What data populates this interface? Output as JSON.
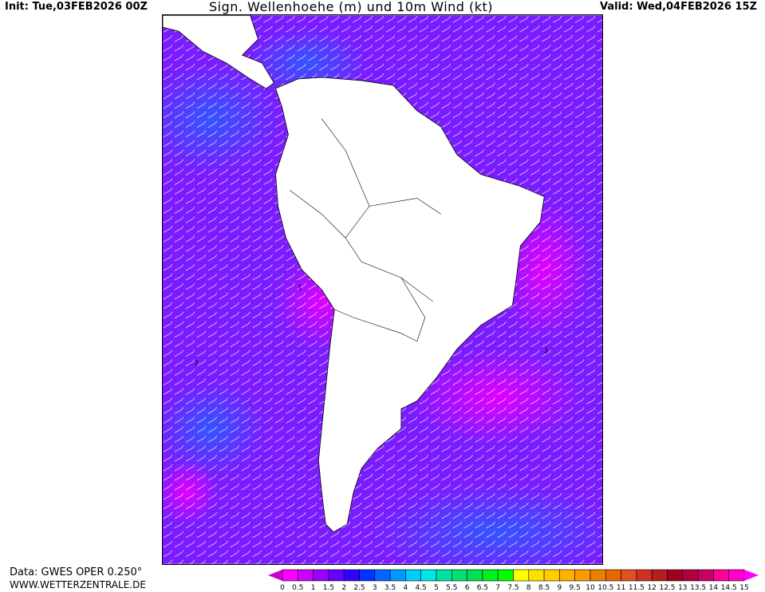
{
  "header": {
    "init": "Init: Tue,03FEB2026 00Z",
    "title": "Sign. Wellenhoehe (m) und 10m Wind (kt)",
    "valid": "Valid: Wed,04FEB2026 15Z"
  },
  "footer": {
    "data_source": "Data: GWES OPER 0.250°",
    "website": "WWW.WETTERZENTRALE.DE"
  },
  "map": {
    "region": "South America",
    "variable": "significant wave height (m) and 10m wind barbs (kt)",
    "contour_labels": [
      "1",
      "2",
      "3"
    ]
  },
  "legend": {
    "unit": "m",
    "labels": [
      "0",
      "0.5",
      "1",
      "1.5",
      "2",
      "2.5",
      "3",
      "3.5",
      "4",
      "4.5",
      "5",
      "5.5",
      "6",
      "6.5",
      "7",
      "7.5",
      "8",
      "8.5",
      "9",
      "9.5",
      "10",
      "10.5",
      "11",
      "11.5",
      "12",
      "12.5",
      "13",
      "13.5",
      "14",
      "14.5",
      "15"
    ],
    "colors": [
      "#ff00ff",
      "#cc00ff",
      "#9900ff",
      "#6600ff",
      "#3300ff",
      "#0033ff",
      "#0066ff",
      "#0099ff",
      "#00ccff",
      "#00e5e5",
      "#00e0a0",
      "#00e070",
      "#00e050",
      "#00f020",
      "#00ff00",
      "#ffff00",
      "#ffe000",
      "#ffcc00",
      "#ffb000",
      "#ff9900",
      "#e88000",
      "#e86600",
      "#e05020",
      "#d03020",
      "#b81c1c",
      "#a00020",
      "#b00040",
      "#c80060",
      "#ff0099",
      "#ff00cc"
    ],
    "under_color": "#cc00cc",
    "over_color": "#ff00ff"
  }
}
